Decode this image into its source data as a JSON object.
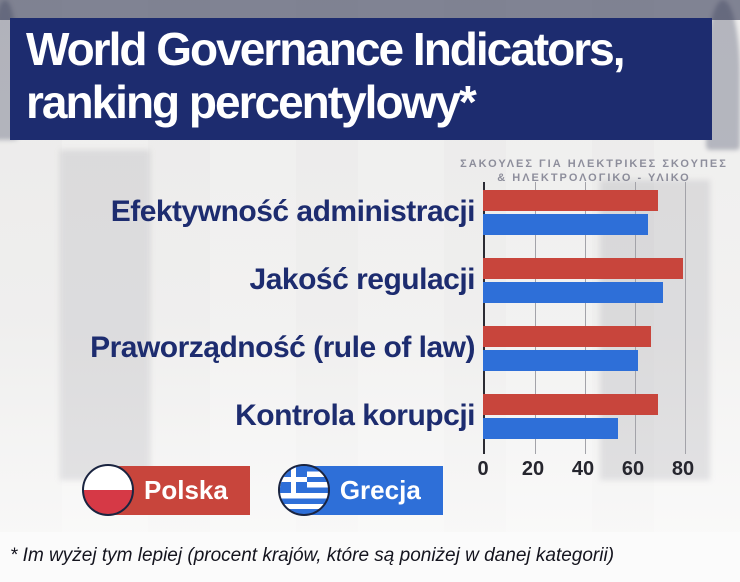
{
  "title": {
    "line1": "World Governance Indicators,",
    "line2": "ranking percentylowy*"
  },
  "background": {
    "signage_line1": "ΣΑΚΟΥΛΕΣ ΓΙΑ ΗΛΕΚΤΡΙΚΕΣ ΣΚΟΥΠΕΣ",
    "signage_line2": "& ΗΛΕΚΤΡΟΛΟΓΙΚΟ - ΥΛΙΚΟ"
  },
  "chart_data": {
    "type": "bar",
    "orientation": "horizontal",
    "title": "World Governance Indicators, ranking percentylowy*",
    "categories": [
      "Efektywność administracji",
      "Jakość regulacji",
      "Praworządność (rule of law)",
      "Kontrola korupcji"
    ],
    "series": [
      {
        "name": "Polska",
        "color": "#c8453c",
        "values": [
          70,
          80,
          67,
          70
        ]
      },
      {
        "name": "Grecja",
        "color": "#2e6fd8",
        "values": [
          66,
          72,
          62,
          54
        ]
      }
    ],
    "xticks": [
      0,
      20,
      40,
      60,
      80
    ],
    "xlim": [
      0,
      88
    ],
    "grid": true,
    "legend_position": "bottom-left",
    "footnote": "* Im wyżej tym lepiej (procent krajów, które są poniżej w danej kategorii)"
  },
  "legend": {
    "items": [
      {
        "label": "Polska",
        "color": "#c8453c",
        "flag_icon": "poland-flag-icon"
      },
      {
        "label": "Grecja",
        "color": "#2e6fd8",
        "flag_icon": "greece-flag-icon"
      }
    ]
  },
  "colors": {
    "banner": "#1d2c6f",
    "category_label": "#1d2c6f",
    "polska_bar": "#c8453c",
    "grecja_bar": "#2e6fd8"
  }
}
